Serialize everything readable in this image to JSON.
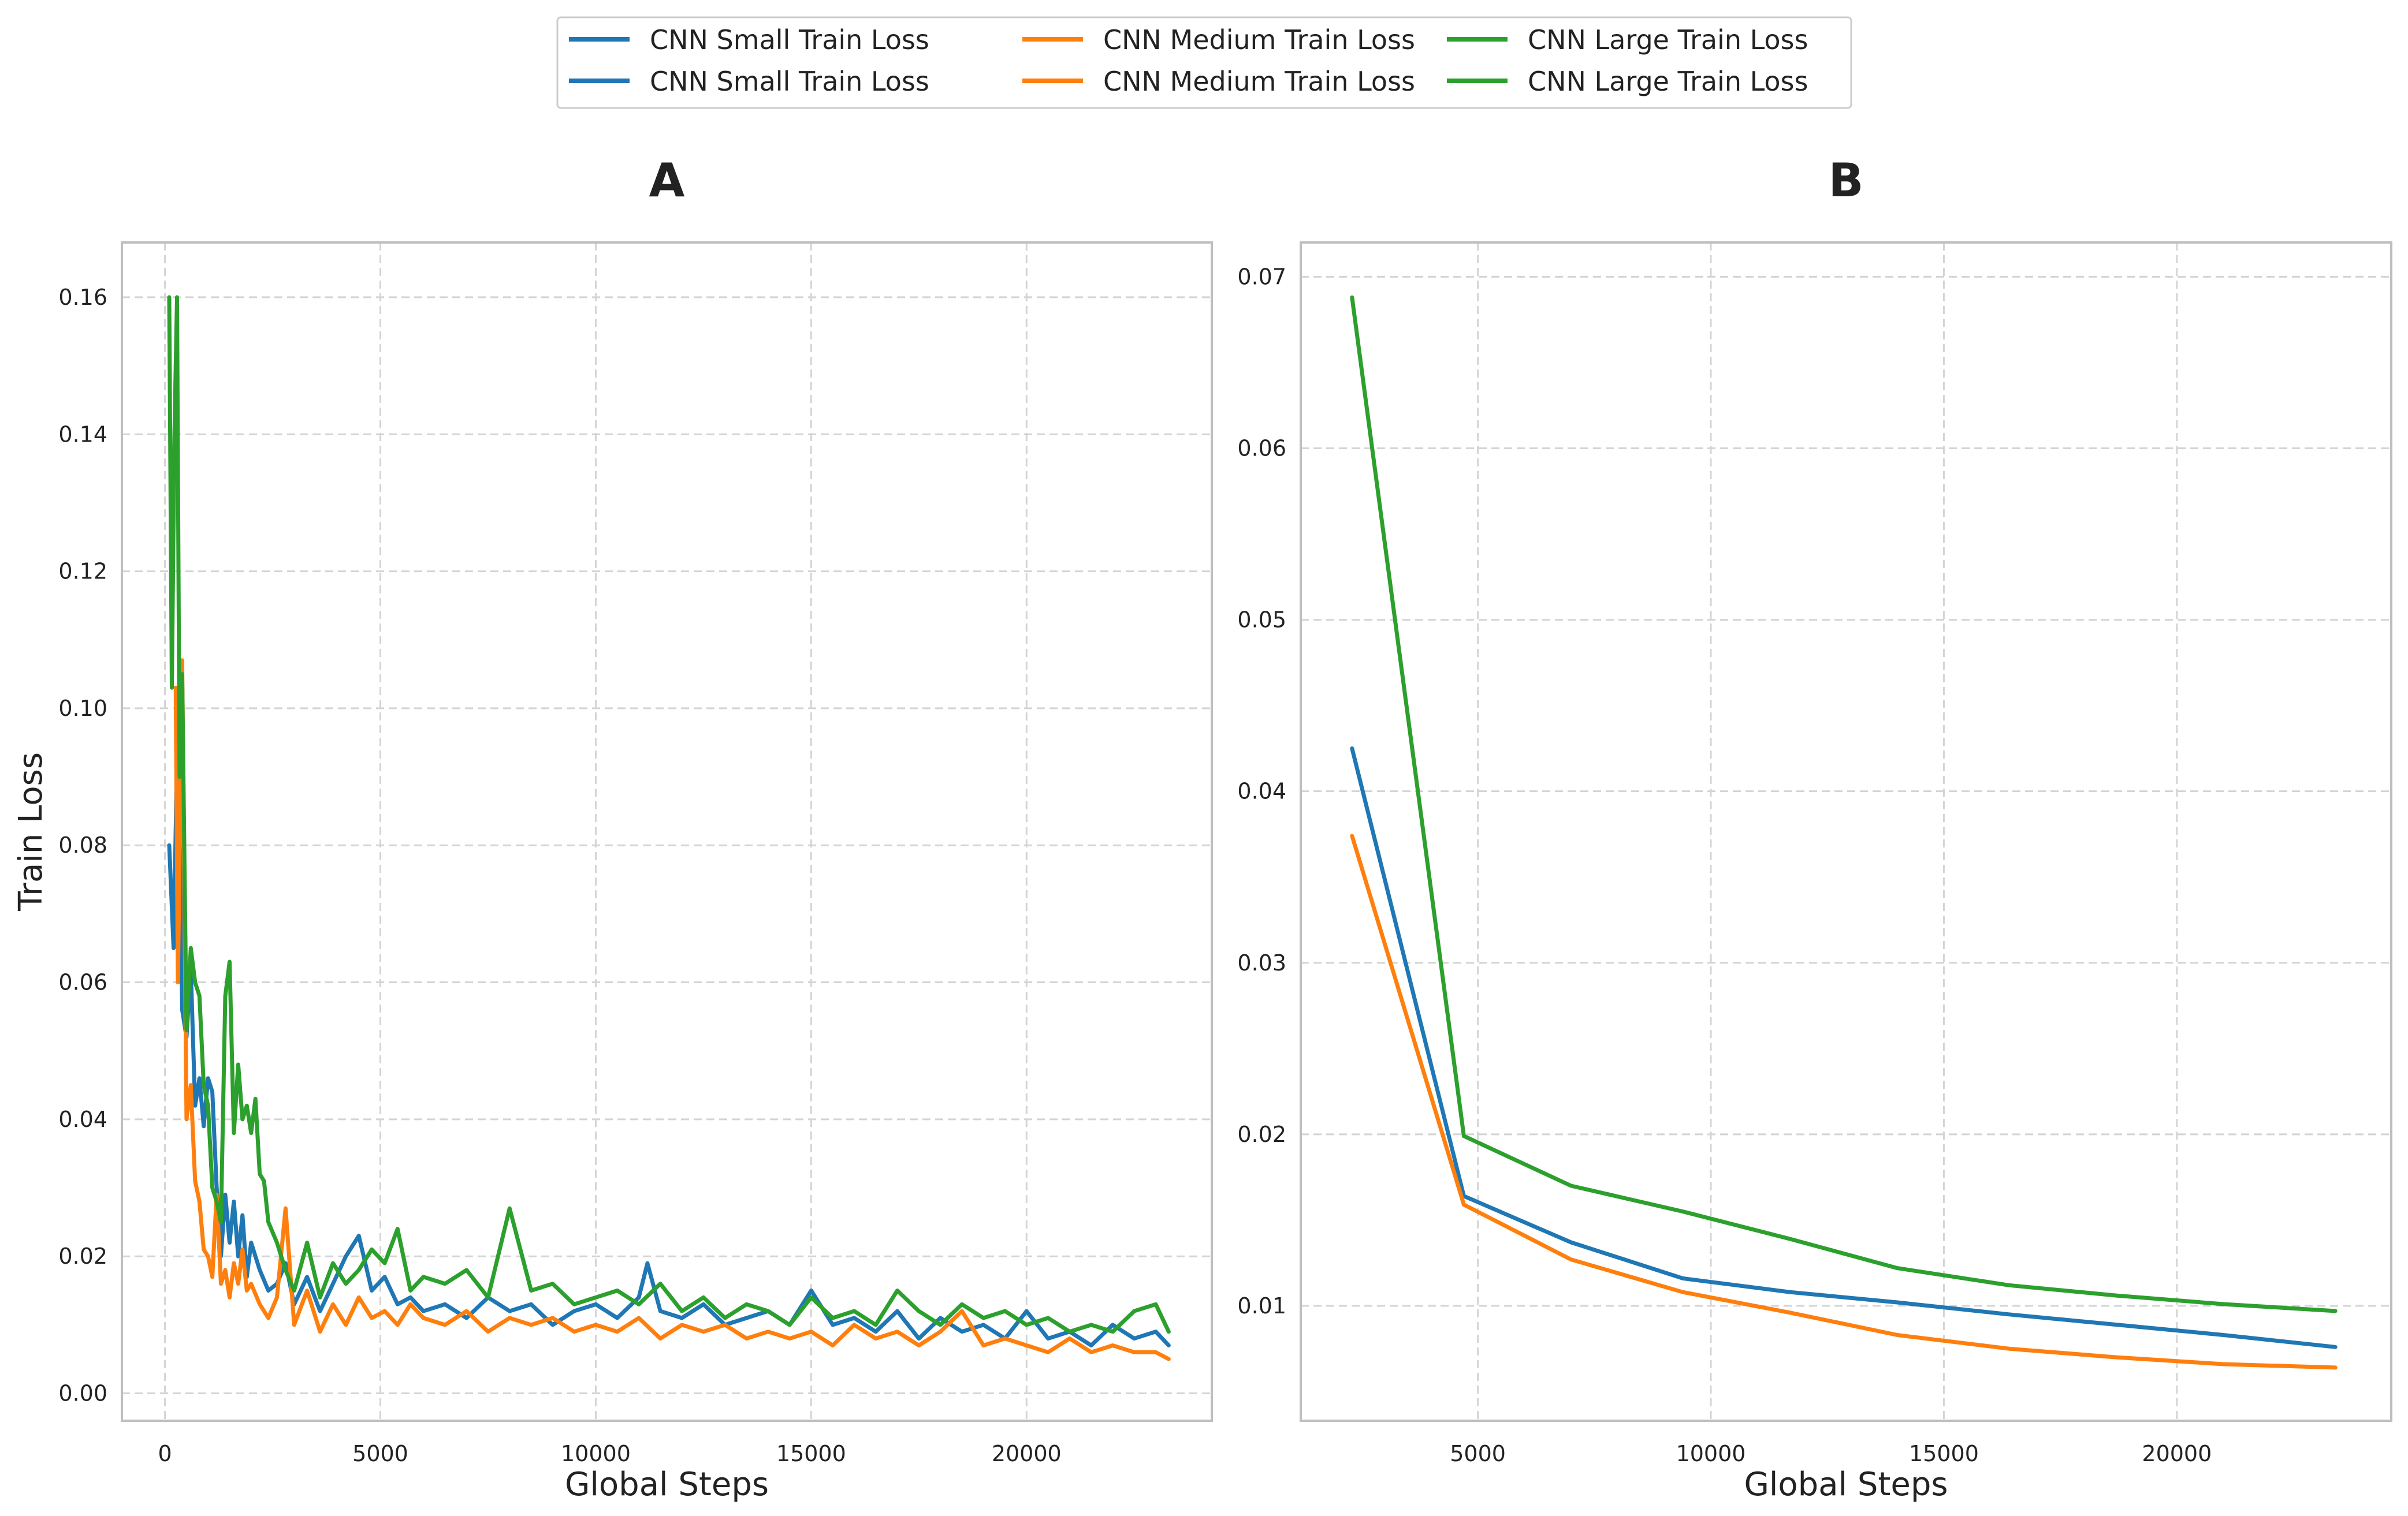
{
  "legend": {
    "placement": "top-center",
    "columns": 3,
    "entries": [
      {
        "label": "CNN Small Train Loss",
        "color": "#1f77b4"
      },
      {
        "label": "CNN Medium Train Loss",
        "color": "#ff7f0e"
      },
      {
        "label": "CNN Large Train Loss",
        "color": "#2ca02c"
      },
      {
        "label": "CNN Small Train Loss",
        "color": "#1f77b4"
      },
      {
        "label": "CNN Medium Train Loss",
        "color": "#ff7f0e"
      },
      {
        "label": "CNN Large Train Loss",
        "color": "#2ca02c"
      }
    ]
  },
  "chart_data": [
    {
      "type": "line",
      "title": "A",
      "xlabel": "Global Steps",
      "ylabel": "Train Loss",
      "xlim": [
        -1000,
        24300
      ],
      "ylim": [
        -0.004,
        0.168
      ],
      "xticks": [
        0,
        5000,
        10000,
        15000,
        20000
      ],
      "xtick_labels": [
        "0",
        "5000",
        "10000",
        "15000",
        "20000"
      ],
      "yticks": [
        0.0,
        0.02,
        0.04,
        0.06,
        0.08,
        0.1,
        0.12,
        0.14,
        0.16
      ],
      "ytick_labels": [
        "0.00",
        "0.02",
        "0.04",
        "0.06",
        "0.08",
        "0.10",
        "0.12",
        "0.14",
        "0.16"
      ],
      "grid": true,
      "series": [
        {
          "name": "CNN Small Train Loss",
          "color": "#1f77b4",
          "x": [
            100,
            200,
            300,
            400,
            500,
            600,
            700,
            800,
            900,
            1000,
            1100,
            1200,
            1300,
            1400,
            1500,
            1600,
            1700,
            1800,
            1900,
            2000,
            2200,
            2400,
            2600,
            2800,
            3000,
            3300,
            3600,
            3900,
            4200,
            4500,
            4800,
            5100,
            5400,
            5700,
            6000,
            6500,
            7000,
            7500,
            8000,
            8500,
            9000,
            9500,
            10000,
            10500,
            11000,
            11200,
            11500,
            12000,
            12500,
            13000,
            13500,
            14000,
            14500,
            15000,
            15500,
            16000,
            16500,
            17000,
            17500,
            18000,
            18500,
            19000,
            19500,
            20000,
            20500,
            21000,
            21500,
            22000,
            22500,
            23000,
            23300
          ],
          "y": [
            0.08,
            0.065,
            0.1,
            0.056,
            0.052,
            0.062,
            0.042,
            0.046,
            0.039,
            0.046,
            0.044,
            0.03,
            0.02,
            0.029,
            0.022,
            0.028,
            0.02,
            0.026,
            0.017,
            0.022,
            0.018,
            0.015,
            0.016,
            0.019,
            0.013,
            0.017,
            0.012,
            0.016,
            0.02,
            0.023,
            0.015,
            0.017,
            0.013,
            0.014,
            0.012,
            0.013,
            0.011,
            0.014,
            0.012,
            0.013,
            0.01,
            0.012,
            0.013,
            0.011,
            0.014,
            0.019,
            0.012,
            0.011,
            0.013,
            0.01,
            0.011,
            0.012,
            0.01,
            0.015,
            0.01,
            0.011,
            0.009,
            0.012,
            0.008,
            0.011,
            0.009,
            0.01,
            0.008,
            0.012,
            0.008,
            0.009,
            0.007,
            0.01,
            0.008,
            0.009,
            0.007
          ]
        },
        {
          "name": "CNN Medium Train Loss",
          "color": "#ff7f0e",
          "x": [
            250,
            300,
            400,
            500,
            600,
            700,
            800,
            900,
            1000,
            1100,
            1200,
            1300,
            1400,
            1500,
            1600,
            1700,
            1800,
            1900,
            2000,
            2200,
            2400,
            2600,
            2800,
            3000,
            3300,
            3600,
            3900,
            4200,
            4500,
            4800,
            5100,
            5400,
            5700,
            6000,
            6500,
            7000,
            7500,
            8000,
            8500,
            9000,
            9500,
            10000,
            10500,
            11000,
            11500,
            12000,
            12500,
            13000,
            13500,
            14000,
            14500,
            15000,
            15500,
            16000,
            16500,
            17000,
            17500,
            18000,
            18500,
            19000,
            19500,
            20000,
            20500,
            21000,
            21500,
            22000,
            22500,
            23000,
            23300
          ],
          "y": [
            0.103,
            0.06,
            0.107,
            0.04,
            0.045,
            0.031,
            0.028,
            0.021,
            0.02,
            0.017,
            0.029,
            0.016,
            0.018,
            0.014,
            0.019,
            0.016,
            0.021,
            0.015,
            0.016,
            0.013,
            0.011,
            0.014,
            0.027,
            0.01,
            0.015,
            0.009,
            0.013,
            0.01,
            0.014,
            0.011,
            0.012,
            0.01,
            0.013,
            0.011,
            0.01,
            0.012,
            0.009,
            0.011,
            0.01,
            0.011,
            0.009,
            0.01,
            0.009,
            0.011,
            0.008,
            0.01,
            0.009,
            0.01,
            0.008,
            0.009,
            0.008,
            0.009,
            0.007,
            0.01,
            0.008,
            0.009,
            0.007,
            0.009,
            0.012,
            0.007,
            0.008,
            0.007,
            0.006,
            0.008,
            0.006,
            0.007,
            0.006,
            0.006,
            0.005
          ]
        },
        {
          "name": "CNN Large Train Loss",
          "color": "#2ca02c",
          "x": [
            100,
            160,
            220,
            280,
            340,
            400,
            500,
            600,
            700,
            800,
            900,
            1000,
            1100,
            1200,
            1300,
            1400,
            1500,
            1600,
            1700,
            1800,
            1900,
            2000,
            2100,
            2200,
            2300,
            2400,
            2600,
            2800,
            3000,
            3300,
            3600,
            3900,
            4200,
            4500,
            4800,
            5100,
            5400,
            5700,
            6000,
            6500,
            7000,
            7500,
            8000,
            8500,
            9000,
            9500,
            10000,
            10500,
            11000,
            11500,
            12000,
            12500,
            13000,
            13500,
            14000,
            14500,
            15000,
            15500,
            16000,
            16500,
            17000,
            17500,
            18000,
            18500,
            19000,
            19500,
            20000,
            20500,
            21000,
            21500,
            22000,
            22500,
            23000,
            23300
          ],
          "y": [
            0.16,
            0.103,
            0.14,
            0.16,
            0.09,
            0.105,
            0.053,
            0.065,
            0.06,
            0.058,
            0.045,
            0.042,
            0.03,
            0.028,
            0.025,
            0.058,
            0.063,
            0.038,
            0.048,
            0.04,
            0.042,
            0.038,
            0.043,
            0.032,
            0.031,
            0.025,
            0.022,
            0.018,
            0.015,
            0.022,
            0.014,
            0.019,
            0.016,
            0.018,
            0.021,
            0.019,
            0.024,
            0.015,
            0.017,
            0.016,
            0.018,
            0.014,
            0.027,
            0.015,
            0.016,
            0.013,
            0.014,
            0.015,
            0.013,
            0.016,
            0.012,
            0.014,
            0.011,
            0.013,
            0.012,
            0.01,
            0.014,
            0.011,
            0.012,
            0.01,
            0.015,
            0.012,
            0.01,
            0.013,
            0.011,
            0.012,
            0.01,
            0.011,
            0.009,
            0.01,
            0.009,
            0.012,
            0.013,
            0.009
          ]
        }
      ]
    },
    {
      "type": "line",
      "title": "B",
      "xlabel": "Global Steps",
      "ylabel": "",
      "xlim": [
        1200,
        24600
      ],
      "ylim": [
        0.0033,
        0.072
      ],
      "xticks": [
        5000,
        10000,
        15000,
        20000
      ],
      "xtick_labels": [
        "5000",
        "10000",
        "15000",
        "20000"
      ],
      "yticks": [
        0.01,
        0.02,
        0.03,
        0.04,
        0.05,
        0.06,
        0.07
      ],
      "ytick_labels": [
        "0.01",
        "0.02",
        "0.03",
        "0.04",
        "0.05",
        "0.06",
        "0.07"
      ],
      "grid": true,
      "series": [
        {
          "name": "CNN Small Train Loss",
          "color": "#1f77b4",
          "x": [
            2300,
            4700,
            7000,
            9400,
            11700,
            14000,
            16400,
            18700,
            21000,
            23400
          ],
          "y": [
            0.0425,
            0.0164,
            0.0137,
            0.0116,
            0.0108,
            0.0102,
            0.0095,
            0.0089,
            0.0083,
            0.0076
          ]
        },
        {
          "name": "CNN Medium Train Loss",
          "color": "#ff7f0e",
          "x": [
            2300,
            4700,
            7000,
            9400,
            11700,
            14000,
            16400,
            18700,
            21000,
            23400
          ],
          "y": [
            0.0374,
            0.0159,
            0.0127,
            0.0108,
            0.0096,
            0.0083,
            0.0075,
            0.007,
            0.0066,
            0.0064
          ]
        },
        {
          "name": "CNN Large Train Loss",
          "color": "#2ca02c",
          "x": [
            2300,
            4700,
            7000,
            9400,
            11700,
            14000,
            16400,
            18700,
            21000,
            23400
          ],
          "y": [
            0.0688,
            0.0199,
            0.017,
            0.0155,
            0.0139,
            0.0122,
            0.0112,
            0.0106,
            0.0101,
            0.0097
          ]
        }
      ]
    }
  ]
}
